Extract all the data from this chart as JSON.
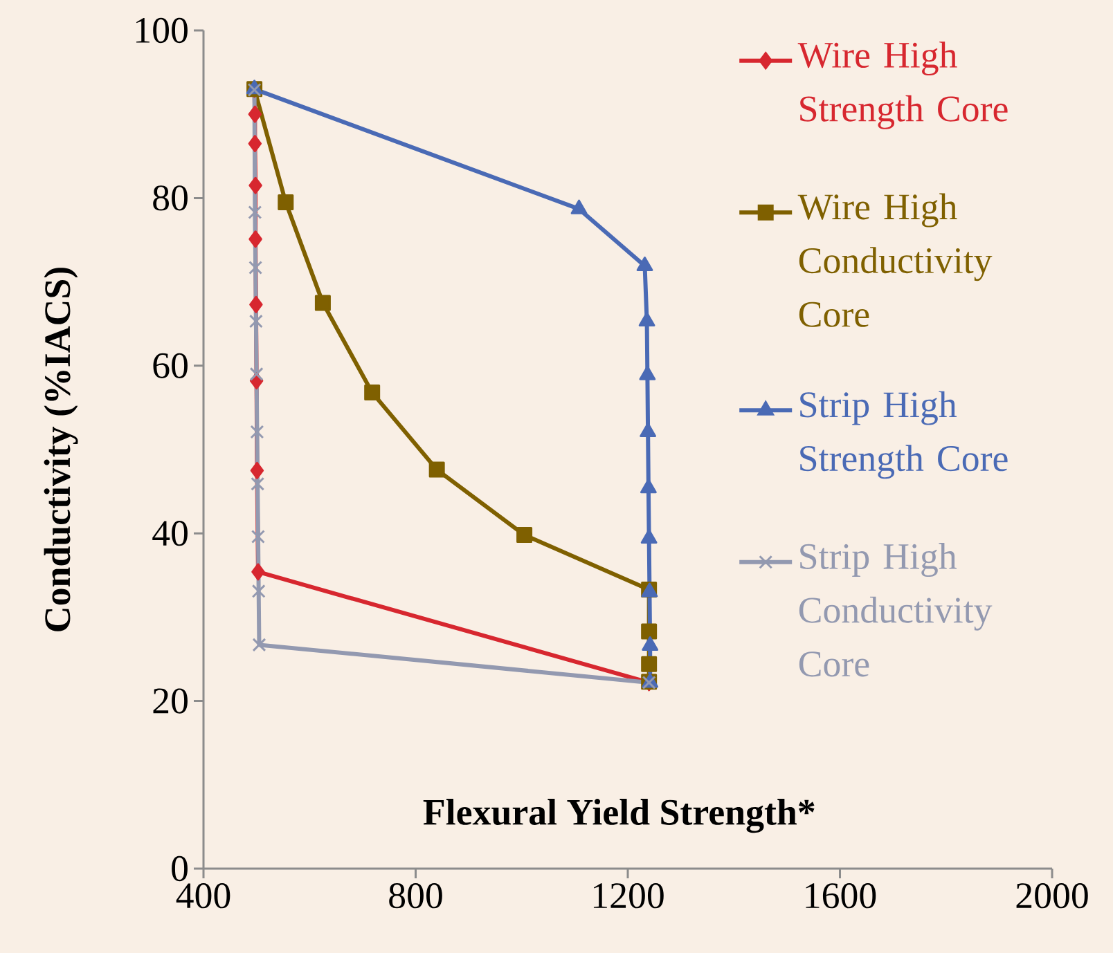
{
  "chart_data": {
    "type": "line",
    "xlabel": "Flexural Yield Strength*",
    "ylabel": "Conductivity (%IACS)",
    "xlim": [
      400,
      2000
    ],
    "xticks": [
      400,
      800,
      1200,
      1600,
      2000
    ],
    "ylim": [
      0,
      100
    ],
    "yticks": [
      0,
      20,
      40,
      60,
      80,
      100
    ],
    "grid": false,
    "legend": "right",
    "line_style": "solid",
    "series": [
      {
        "name": "Wire High Strength Core",
        "color": "#d7272f",
        "marker": "diamond",
        "x": [
          496,
          497,
          497,
          498,
          498,
          499,
          500,
          501,
          503,
          1240
        ],
        "values": [
          93,
          90.0,
          86.5,
          81.5,
          75.1,
          67.3,
          58.2,
          47.5,
          35.4,
          22.2
        ]
      },
      {
        "name": "Wire High Conductivity Core",
        "color": "#7f6000",
        "marker": "square",
        "x": [
          496,
          555,
          625,
          718,
          840,
          1005,
          1240,
          1240,
          1240,
          1240
        ],
        "values": [
          93,
          79.5,
          67.5,
          56.8,
          47.6,
          39.8,
          33.3,
          28.3,
          24.4,
          22.3
        ]
      },
      {
        "name": "Strip High Strength Core",
        "color": "#4a6ab5",
        "marker": "triangle",
        "x": [
          496,
          1108,
          1232,
          1236,
          1237,
          1238,
          1239,
          1240,
          1241,
          1242,
          1242
        ],
        "values": [
          93,
          78.7,
          71.9,
          65.3,
          58.9,
          52.1,
          45.4,
          39.4,
          33.0,
          26.6,
          22.2
        ]
      },
      {
        "name": "Strip High Conductivity Core",
        "color": "#9399b0",
        "marker": "cross",
        "x": [
          496,
          497,
          498,
          499,
          500,
          501,
          502,
          503,
          504,
          505,
          1240
        ],
        "values": [
          92.9,
          78.3,
          71.7,
          65.3,
          59.0,
          52.1,
          45.9,
          39.6,
          33.1,
          26.7,
          22.2
        ]
      }
    ]
  }
}
